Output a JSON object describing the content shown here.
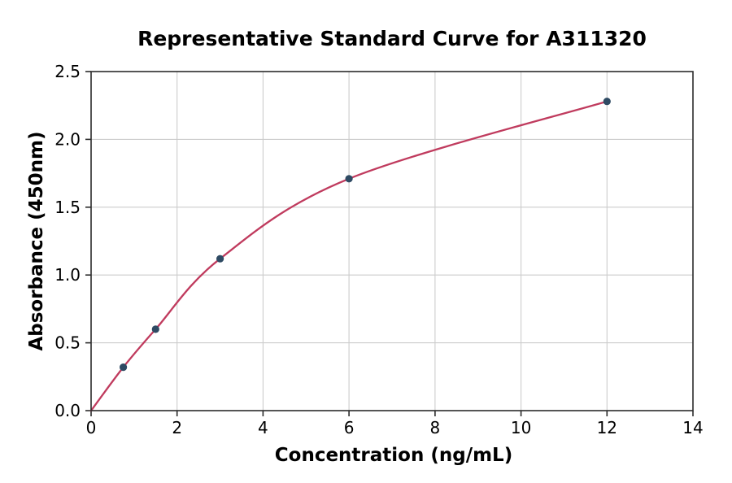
{
  "page": {
    "background": "#ffffff"
  },
  "chart_data": {
    "type": "scatter",
    "title": "Representative Standard Curve for A311320",
    "xlabel": "Concentration (ng/mL)",
    "ylabel": "Absorbance (450nm)",
    "xlim": [
      0,
      14
    ],
    "ylim": [
      0,
      2.5
    ],
    "xticks": {
      "values": [
        0,
        2,
        4,
        6,
        8,
        10,
        12,
        14
      ],
      "labels": [
        "0",
        "2",
        "4",
        "6",
        "8",
        "10",
        "12",
        "14"
      ]
    },
    "yticks": {
      "values": [
        0,
        0.5,
        1.0,
        1.5,
        2.0,
        2.5
      ],
      "labels": [
        "0.0",
        "0.5",
        "1.0",
        "1.5",
        "2.0",
        "2.5"
      ]
    },
    "grid": true,
    "legend": "none",
    "series": [
      {
        "name": "fit-curve",
        "type": "line",
        "smooth": true,
        "x": [
          0,
          0.75,
          1.5,
          3,
          6,
          12
        ],
        "y": [
          0,
          0.32,
          0.6,
          1.12,
          1.71,
          2.28
        ],
        "line_color": "#c03b5e",
        "line_width": 2.3
      },
      {
        "name": "standard-points",
        "type": "scatter",
        "x": [
          0.75,
          1.5,
          3,
          6,
          12
        ],
        "y": [
          0.32,
          0.6,
          1.12,
          1.71,
          2.28
        ],
        "marker_color": "#2e4a63",
        "marker_radius": 4.6
      }
    ],
    "colors": {
      "grid": "#cccccc",
      "spine": "#2b2b2b",
      "text": "#000000"
    }
  }
}
